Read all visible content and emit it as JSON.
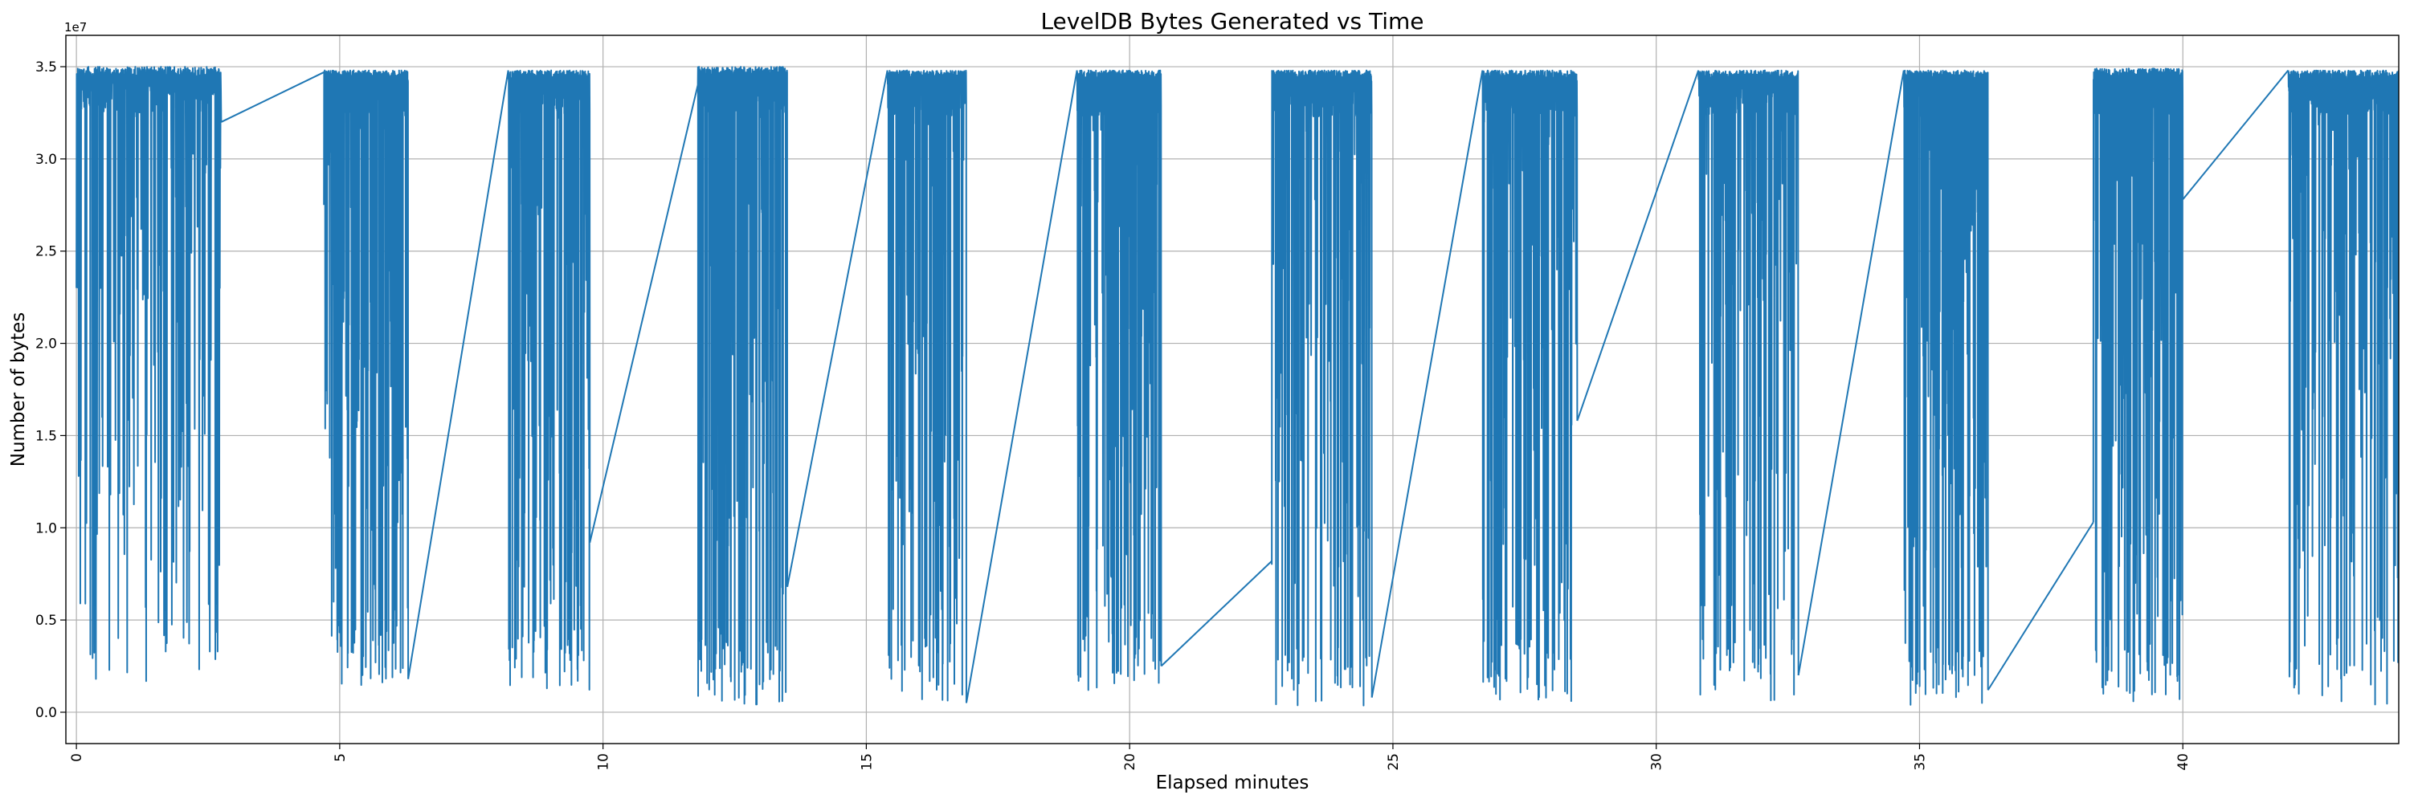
{
  "chart_data": {
    "type": "line",
    "title": "LevelDB Bytes Generated vs Time",
    "xlabel": "Elapsed minutes",
    "ylabel": "Number of bytes",
    "y_offset_text": "1e7",
    "xlim": [
      -0.2,
      44.1
    ],
    "ylim": [
      -0.17,
      3.67
    ],
    "x_ticks": [
      0,
      5,
      10,
      15,
      20,
      25,
      30,
      35,
      40
    ],
    "x_tick_labels": [
      "0",
      "5",
      "10",
      "15",
      "20",
      "25",
      "30",
      "35",
      "40"
    ],
    "y_ticks": [
      0.0,
      0.5,
      1.0,
      1.5,
      2.0,
      2.5,
      3.0,
      3.5
    ],
    "y_tick_labels": [
      "0.0",
      "0.5",
      "1.0",
      "1.5",
      "2.0",
      "2.5",
      "3.0",
      "3.5"
    ],
    "grid": true,
    "colors": {
      "series": "#1f77b4"
    },
    "bursts": [
      {
        "x_start": 0.0,
        "x_end": 2.75,
        "y_low": 0.15,
        "y_high": 3.5,
        "y_start": 2.3
      },
      {
        "x_start": 4.7,
        "x_end": 6.3,
        "y_low": 0.12,
        "y_high": 3.48,
        "y_start": 2.75
      },
      {
        "x_start": 8.2,
        "x_end": 9.75,
        "y_low": 0.12,
        "y_high": 3.48,
        "y_start": 3.48
      },
      {
        "x_start": 11.8,
        "x_end": 13.5,
        "y_low": 0.04,
        "y_high": 3.5,
        "y_start": 3.4
      },
      {
        "x_start": 15.4,
        "x_end": 16.9,
        "y_low": 0.05,
        "y_high": 3.48,
        "y_start": 3.48
      },
      {
        "x_start": 19.0,
        "x_end": 20.6,
        "y_low": 0.1,
        "y_high": 3.48,
        "y_start": 3.48
      },
      {
        "x_start": 22.7,
        "x_end": 24.6,
        "y_low": 0.02,
        "y_high": 3.48,
        "y_start": 0.8
      },
      {
        "x_start": 26.7,
        "x_end": 28.5,
        "y_low": 0.05,
        "y_high": 3.48,
        "y_start": 3.48
      },
      {
        "x_start": 30.8,
        "x_end": 32.7,
        "y_low": 0.05,
        "y_high": 3.48,
        "y_start": 3.48
      },
      {
        "x_start": 34.7,
        "x_end": 36.3,
        "y_low": 0.03,
        "y_high": 3.48,
        "y_start": 3.48
      },
      {
        "x_start": 38.3,
        "x_end": 40.0,
        "y_low": 0.02,
        "y_high": 3.49,
        "y_start": 1.03
      },
      {
        "x_start": 42.0,
        "x_end": 44.1,
        "y_low": 0.03,
        "y_high": 3.48,
        "y_start": 3.48
      }
    ],
    "gap_segments": [
      {
        "x": [
          2.75,
          4.7
        ],
        "y": [
          3.2,
          3.47
        ]
      },
      {
        "x": [
          6.3,
          8.2
        ],
        "y": [
          0.18,
          3.48
        ]
      },
      {
        "x": [
          9.75,
          11.8
        ],
        "y": [
          0.92,
          3.4
        ]
      },
      {
        "x": [
          13.5,
          15.4
        ],
        "y": [
          0.68,
          3.48
        ]
      },
      {
        "x": [
          16.9,
          19.0
        ],
        "y": [
          0.05,
          3.48
        ]
      },
      {
        "x": [
          20.6,
          22.7
        ],
        "y": [
          0.25,
          0.82
        ]
      },
      {
        "x": [
          24.6,
          26.7
        ],
        "y": [
          0.08,
          3.48
        ]
      },
      {
        "x": [
          28.5,
          30.8
        ],
        "y": [
          1.58,
          3.48
        ]
      },
      {
        "x": [
          32.7,
          34.7
        ],
        "y": [
          0.2,
          3.48
        ]
      },
      {
        "x": [
          36.3,
          38.3
        ],
        "y": [
          0.12,
          1.03
        ]
      },
      {
        "x": [
          40.0,
          42.0
        ],
        "y": [
          2.78,
          3.48
        ]
      }
    ]
  }
}
